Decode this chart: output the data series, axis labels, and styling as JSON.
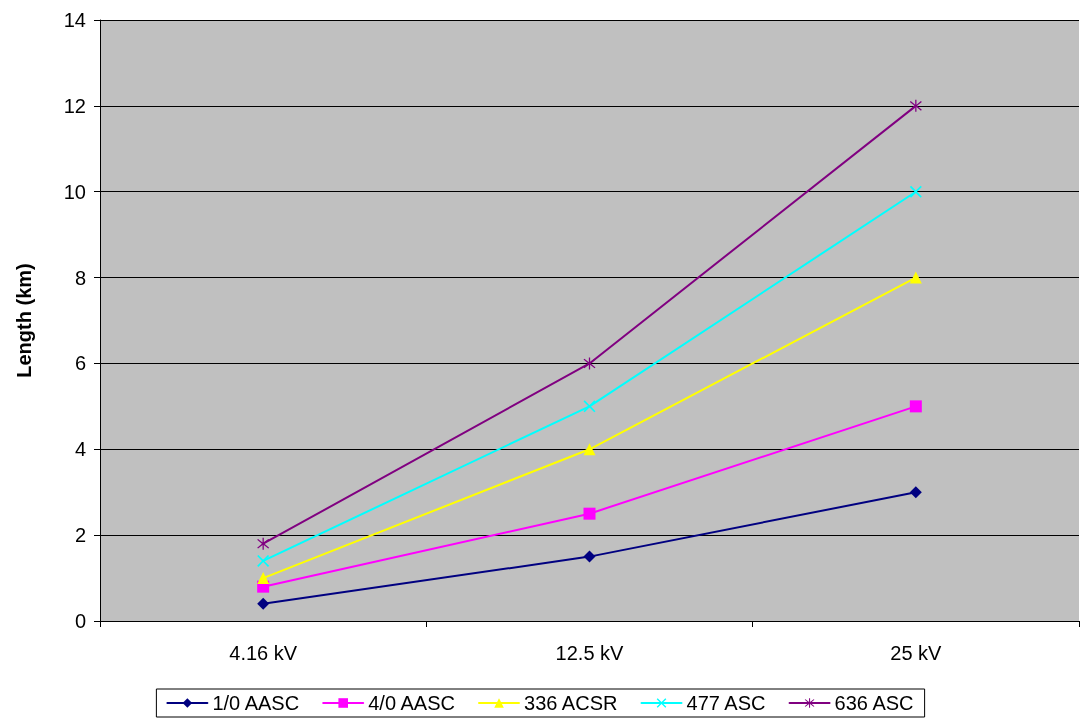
{
  "chart_data": {
    "type": "line",
    "ylabel": "Length (km)",
    "categories": [
      "4.16 kV",
      "12.5 kV",
      "25 kV"
    ],
    "series": [
      {
        "name": "1/0 AASC",
        "color": "#000080",
        "marker": "diamond",
        "values": [
          0.4,
          1.5,
          3
        ]
      },
      {
        "name": "4/0 AASC",
        "color": "#ff00ff",
        "marker": "square",
        "values": [
          0.8,
          2.5,
          5
        ]
      },
      {
        "name": "336 ACSR",
        "color": "#ffff00",
        "marker": "triangle",
        "values": [
          1.0,
          4,
          8
        ]
      },
      {
        "name": "477 ASC",
        "color": "#00ffff",
        "marker": "cross",
        "values": [
          1.4,
          5,
          10
        ]
      },
      {
        "name": "636 ASC",
        "color": "#800080",
        "marker": "star",
        "values": [
          1.8,
          6,
          12
        ]
      }
    ],
    "ylim": [
      0,
      14
    ],
    "yticks": [
      0,
      2,
      4,
      6,
      8,
      10,
      12,
      14
    ],
    "grid": "y",
    "legend": "bottom",
    "line_style": "solid"
  }
}
